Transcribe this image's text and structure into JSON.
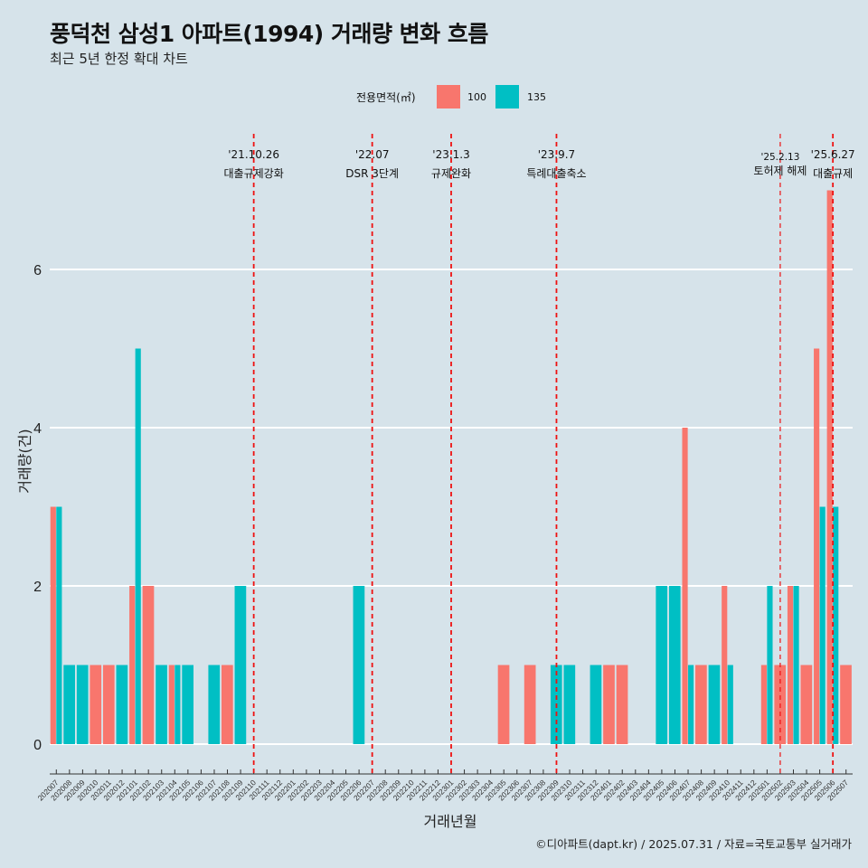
{
  "title": "풍덕천 삼성1 아파트(1994) 거래량 변화 흐름",
  "subtitle": "최근 5년 한정 확대 차트",
  "caption": "©디아파트(dapt.kr) / 2025.07.31 / 자료=국토교통부 실거래가",
  "legend": {
    "title": "전용면적(㎡)",
    "items": [
      {
        "label": "100",
        "color": "#f8766d"
      },
      {
        "label": "135",
        "color": "#00bfc4"
      }
    ]
  },
  "chart_data": {
    "type": "bar",
    "xlabel": "거래년월",
    "ylabel": "거래량(건)",
    "ylim": [
      0,
      7.5
    ],
    "yticks": [
      0,
      2,
      4,
      6
    ],
    "grid": true,
    "legend_position": "top",
    "categories": [
      "202007",
      "202008",
      "202009",
      "202010",
      "202011",
      "202012",
      "202101",
      "202102",
      "202103",
      "202104",
      "202105",
      "202106",
      "202107",
      "202108",
      "202109",
      "202110",
      "202111",
      "202112",
      "202201",
      "202202",
      "202203",
      "202204",
      "202205",
      "202206",
      "202207",
      "202208",
      "202209",
      "202210",
      "202211",
      "202212",
      "202301",
      "202302",
      "202303",
      "202304",
      "202305",
      "202306",
      "202307",
      "202308",
      "202309",
      "202310",
      "202311",
      "202312",
      "202401",
      "202402",
      "202403",
      "202404",
      "202405",
      "202406",
      "202407",
      "202408",
      "202409",
      "202410",
      "202411",
      "202412",
      "202501",
      "202502",
      "202503",
      "202504",
      "202505",
      "202506",
      "202507"
    ],
    "series": [
      {
        "name": "100",
        "color": "#f8766d",
        "values": [
          3,
          0,
          0,
          1,
          1,
          0,
          2,
          2,
          0,
          1,
          0,
          0,
          0,
          1,
          0,
          0,
          0,
          0,
          0,
          0,
          0,
          0,
          0,
          0,
          0,
          0,
          0,
          0,
          0,
          0,
          0,
          0,
          0,
          0,
          1,
          0,
          1,
          0,
          0,
          0,
          0,
          0,
          1,
          1,
          0,
          0,
          0,
          0,
          4,
          1,
          0,
          2,
          0,
          0,
          1,
          1,
          2,
          1,
          5,
          7,
          1
        ]
      },
      {
        "name": "135",
        "color": "#00bfc4",
        "values": [
          3,
          1,
          1,
          0,
          0,
          1,
          5,
          0,
          1,
          1,
          1,
          0,
          1,
          0,
          2,
          0,
          0,
          0,
          0,
          0,
          0,
          0,
          0,
          2,
          0,
          0,
          0,
          0,
          0,
          0,
          0,
          0,
          0,
          0,
          0,
          0,
          0,
          0,
          1,
          1,
          0,
          1,
          0,
          0,
          0,
          0,
          2,
          2,
          1,
          0,
          1,
          1,
          0,
          0,
          2,
          0,
          2,
          0,
          3,
          3,
          0
        ]
      }
    ],
    "annotations": [
      {
        "category": "202110",
        "date": "'21.10.26",
        "label": "대출규제강화"
      },
      {
        "category": "202207",
        "date": "'22.07",
        "label": "DSR 3단계"
      },
      {
        "category": "202301",
        "date": "'23.1.3",
        "label": "규제완화"
      },
      {
        "category": "202309",
        "date": "'23.9.7",
        "label": "특례대출축소"
      },
      {
        "category": "202502",
        "date": "'25.2.13",
        "label": "토허제 해제"
      },
      {
        "category": "202506",
        "date": "'25.6.27",
        "label": "대출규제"
      }
    ]
  }
}
